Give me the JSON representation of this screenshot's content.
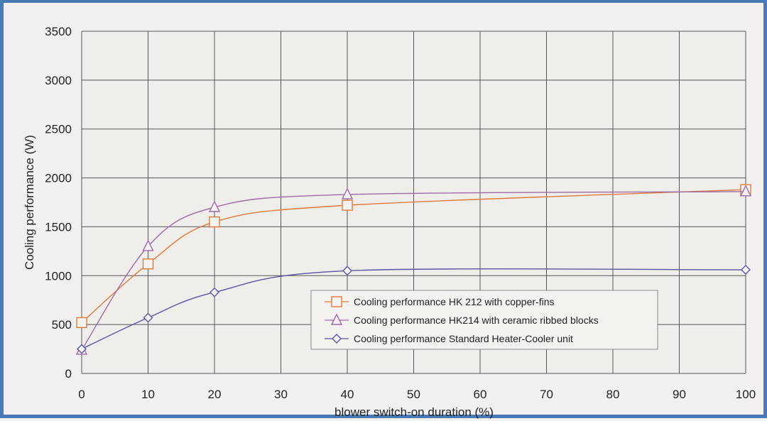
{
  "chart_data": {
    "type": "line",
    "xlabel": "blower switch-on duration (%)",
    "ylabel": "Cooling performance (W)",
    "xlim": [
      0,
      100
    ],
    "ylim": [
      0,
      3500
    ],
    "xticks": [
      0,
      10,
      20,
      30,
      40,
      50,
      60,
      70,
      80,
      90,
      100
    ],
    "yticks": [
      0,
      500,
      1000,
      1500,
      2000,
      2500,
      3000,
      3500
    ],
    "grid": true,
    "legend_position": "center-right",
    "series": [
      {
        "name": "Cooling performance HK 212 with copper-fins",
        "marker": "square",
        "color": "#e07a3a",
        "x": [
          0,
          10,
          20,
          40,
          100
        ],
        "y": [
          520,
          1120,
          1550,
          1720,
          1880
        ]
      },
      {
        "name": "Cooling performance HK214 with ceramic ribbed blocks",
        "marker": "triangle",
        "color": "#a06aa8",
        "x": [
          0,
          10,
          20,
          40,
          100
        ],
        "y": [
          240,
          1300,
          1700,
          1830,
          1860
        ]
      },
      {
        "name": "Cooling performance Standard Heater-Cooler unit",
        "marker": "diamond",
        "color": "#5a55a5",
        "x": [
          0,
          10,
          20,
          40,
          100
        ],
        "y": [
          250,
          570,
          830,
          1050,
          1060
        ]
      }
    ]
  }
}
